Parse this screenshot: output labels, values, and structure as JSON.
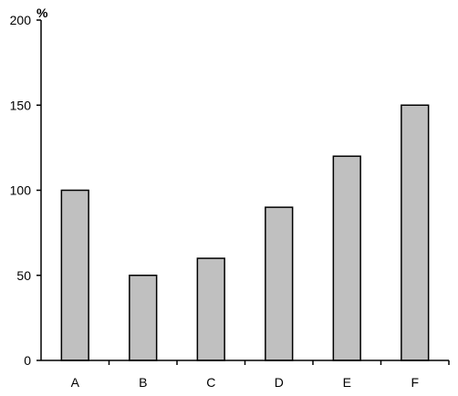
{
  "chart_data": {
    "type": "bar",
    "title": "",
    "xlabel": "",
    "ylabel": "%",
    "categories": [
      "A",
      "B",
      "C",
      "D",
      "E",
      "F"
    ],
    "values": [
      100,
      50,
      60,
      90,
      120,
      150
    ],
    "ylim": [
      0,
      200
    ],
    "yticks": [
      0,
      50,
      100,
      150,
      200
    ],
    "ytick_labels": [
      "0",
      "50",
      "100",
      "150",
      "200"
    ],
    "grid": false,
    "legend": "none",
    "colors": {
      "bar_fill": "#c0c0c0",
      "bar_stroke": "#000000",
      "axis": "#000000",
      "background": "#ffffff"
    }
  }
}
